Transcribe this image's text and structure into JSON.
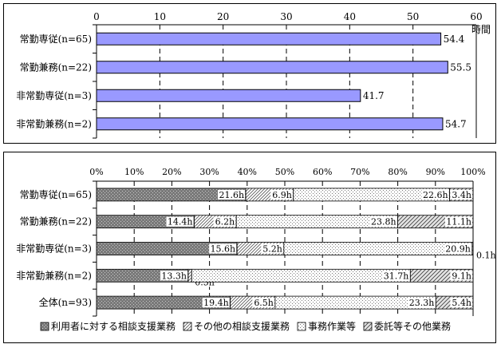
{
  "chart_data": [
    {
      "type": "bar",
      "orientation": "horizontal",
      "title": "",
      "xlabel": "時間",
      "ylabel": "",
      "xlim": [
        0,
        60
      ],
      "ticks": [
        0,
        10,
        20,
        30,
        40,
        50,
        60
      ],
      "grid": true,
      "bar_color": "#9999ff",
      "categories": [
        "常勤専従(n=65)",
        "常勤兼務(n=22)",
        "非常勤専従(n=3)",
        "非常勤兼務(n=2)"
      ],
      "values": [
        54.4,
        55.5,
        41.7,
        54.7
      ],
      "labels": [
        "54.4",
        "55.5",
        "41.7",
        "54.7"
      ]
    },
    {
      "type": "bar",
      "orientation": "horizontal",
      "stacked": "percent",
      "title": "",
      "xlim": [
        0,
        100
      ],
      "ticks": [
        "0%",
        "10%",
        "20%",
        "30%",
        "40%",
        "50%",
        "60%",
        "70%",
        "80%",
        "90%",
        "100%"
      ],
      "grid": true,
      "legend_position": "bottom",
      "categories": [
        "常勤専従(n=65)",
        "常勤兼務(n=22)",
        "非常勤専従(n=3)",
        "非常勤兼務(n=2)",
        "全体(n=93)"
      ],
      "series": [
        {
          "name": "利用者に対する相談支援業務",
          "pattern": "dark",
          "values": [
            21.6,
            14.4,
            15.6,
            13.3,
            19.4
          ],
          "labels": [
            "21.6h",
            "14.4h",
            "15.6h",
            "13.3h",
            "19.4h"
          ]
        },
        {
          "name": "その他の相談支援業務",
          "pattern": "diag",
          "values": [
            6.9,
            6.2,
            5.2,
            0.5,
            6.5
          ],
          "labels": [
            "6.9h",
            "6.2h",
            "5.2h",
            "0.5h",
            "6.5h"
          ]
        },
        {
          "name": "事務作業等",
          "pattern": "dots",
          "values": [
            22.6,
            23.8,
            20.9,
            31.7,
            23.3
          ],
          "labels": [
            "22.6h",
            "23.8h",
            "20.9h",
            "31.7h",
            "23.3h"
          ]
        },
        {
          "name": "委託等その他業務",
          "pattern": "hatch",
          "values": [
            3.4,
            11.1,
            0.1,
            9.1,
            5.4
          ],
          "labels": [
            "3.4h",
            "11.1h",
            "0.1h",
            "9.1h",
            "5.4h"
          ]
        }
      ]
    }
  ]
}
